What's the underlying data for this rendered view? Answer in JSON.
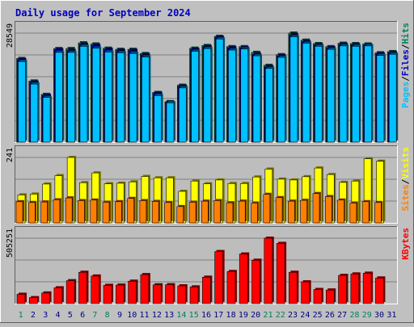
{
  "title": "Daily usage for September 2024",
  "colors": {
    "background": "#C0C0C0",
    "panel": "#BDBDBD",
    "grid": "#808080",
    "title": "#0000C0",
    "hits": "#00805C",
    "files": "#0000C0",
    "pages": "#00C0FF",
    "visits": "#FFFF00",
    "sites": "#FF8000",
    "kbytes": "#FF0000",
    "weekday_label": "#000080",
    "weekend_label": "#00805C"
  },
  "panels": {
    "hits": {
      "max_label": "28549",
      "legend": [
        {
          "text": "Pages",
          "color": "#00C0FF"
        },
        {
          "text": "/",
          "color": "#000000"
        },
        {
          "text": "Files",
          "color": "#0000C0"
        },
        {
          "text": "/",
          "color": "#000000"
        },
        {
          "text": "Hits",
          "color": "#00805C"
        }
      ]
    },
    "visits": {
      "max_label": "241",
      "legend": [
        {
          "text": "Sites",
          "color": "#FF8000"
        },
        {
          "text": "/",
          "color": "#000000"
        },
        {
          "text": "Visits",
          "color": "#FFFF00"
        }
      ]
    },
    "kbytes": {
      "max_label": "505251",
      "legend": [
        {
          "text": "KBytes",
          "color": "#FF0000"
        }
      ]
    }
  },
  "chart_data": {
    "type": "bar",
    "title": "Daily usage for September 2024",
    "categories": [
      "1",
      "2",
      "3",
      "4",
      "5",
      "6",
      "7",
      "8",
      "9",
      "10",
      "11",
      "12",
      "13",
      "14",
      "15",
      "16",
      "17",
      "18",
      "19",
      "20",
      "21",
      "22",
      "23",
      "24",
      "25",
      "26",
      "27",
      "28",
      "29",
      "30",
      "31"
    ],
    "weekend_days": [
      1,
      7,
      8,
      14,
      15,
      21,
      22,
      28,
      29
    ],
    "charts": [
      {
        "name": "hits-files-pages",
        "y_max_label": 28549,
        "ylim": [
          0,
          28549
        ],
        "series": [
          {
            "name": "Hits",
            "values": [
              21900,
              16000,
              12500,
              24500,
              24500,
              26000,
              25700,
              24600,
              24300,
              24300,
              23200,
              13000,
              10600,
              14900,
              24600,
              25300,
              27700,
              25000,
              25000,
              23500,
              20100,
              22900,
              28549,
              26700,
              25800,
              25000,
              25900,
              25800,
              25700,
              23400,
              23700
            ]
          },
          {
            "name": "Files",
            "values": [
              21600,
              15700,
              12200,
              24200,
              24000,
              25600,
              25300,
              24300,
              24000,
              24000,
              22900,
              12800,
              10400,
              14600,
              24300,
              25000,
              27400,
              24700,
              24700,
              23000,
              19700,
              22600,
              28100,
              26300,
              25500,
              24700,
              25600,
              25500,
              25400,
              23100,
              23400
            ]
          },
          {
            "name": "Pages",
            "values": [
              21100,
              15200,
              11700,
              23500,
              23500,
              25100,
              24600,
              23600,
              23400,
              23200,
              22300,
              12200,
              10300,
              14200,
              23800,
              24500,
              27000,
              24100,
              24400,
              22600,
              19300,
              22200,
              27600,
              25900,
              25100,
              24300,
              25200,
              25100,
              25200,
              22700,
              23000
            ]
          }
        ]
      },
      {
        "name": "visits-sites",
        "y_max_label": 241,
        "ylim": [
          0,
          241
        ],
        "series": [
          {
            "name": "Visits",
            "values": [
              103,
              106,
              143,
              174,
              241,
              148,
              184,
              144,
              146,
              151,
              171,
              166,
              166,
              116,
              154,
              144,
              158,
              145,
              145,
              169,
              198,
              161,
              158,
              170,
              202,
              178,
              149,
              154,
              236,
              227,
              0
            ]
          },
          {
            "name": "Sites",
            "values": [
              78,
              75,
              77,
              85,
              92,
              82,
              84,
              76,
              78,
              90,
              82,
              79,
              75,
              60,
              76,
              80,
              82,
              74,
              80,
              73,
              105,
              93,
              80,
              83,
              108,
              97,
              84,
              73,
              78,
              75,
              0
            ]
          }
        ]
      },
      {
        "name": "kbytes",
        "y_max_label": 505251,
        "ylim": [
          0,
          505251
        ],
        "series": [
          {
            "name": "KBytes",
            "values": [
              72000,
              46000,
              82000,
              122000,
              177000,
              242000,
              213000,
              141000,
              143000,
              173000,
              224000,
              145000,
              146000,
              137000,
              129000,
              204000,
              402000,
              248000,
              383000,
              335000,
              505251,
              465000,
              242000,
              168000,
              109000,
              105000,
              218000,
              229000,
              235000,
              198000,
              0
            ]
          }
        ]
      }
    ]
  }
}
